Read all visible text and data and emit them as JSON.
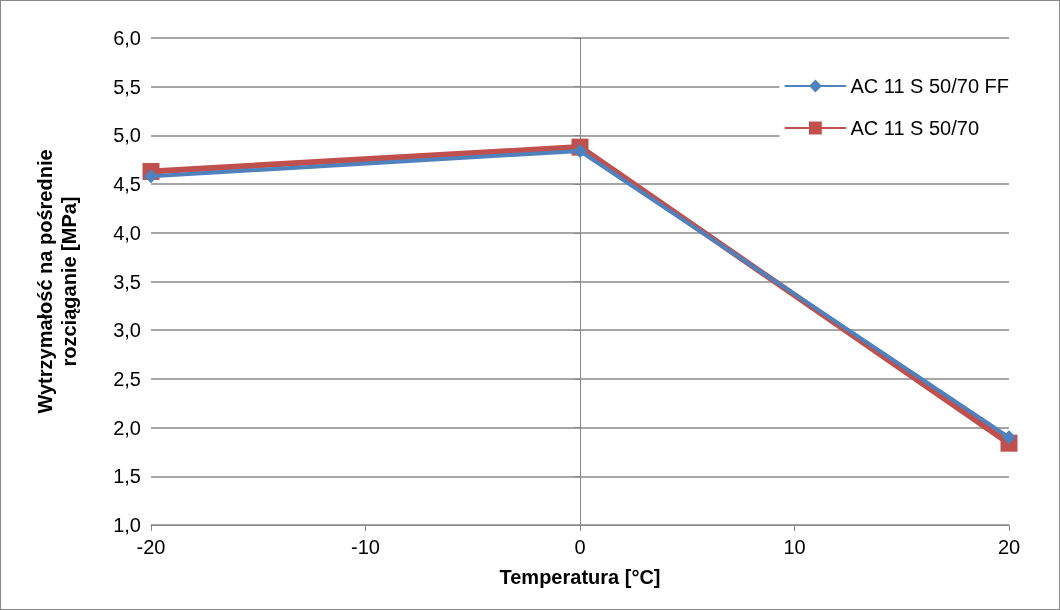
{
  "chart_data": {
    "type": "line",
    "xlabel": "Temperatura [°C]",
    "ylabel": "Wytrzymałość na pośrednie\nrozciąganie [MPa]",
    "x": [
      -20,
      0,
      20
    ],
    "series": [
      {
        "name": "AC 11 S 50/70 FF",
        "color": "#4f81bd",
        "marker": "diamond",
        "values": [
          4.58,
          4.84,
          1.9
        ]
      },
      {
        "name": "AC 11 S 50/70",
        "color": "#c0504d",
        "marker": "square",
        "values": [
          4.63,
          4.88,
          1.84
        ]
      }
    ],
    "xlim": [
      -20,
      20
    ],
    "xticks": [
      -20,
      -10,
      0,
      10,
      20
    ],
    "ylim": [
      1,
      6
    ],
    "yticks": [
      {
        "value": 1,
        "label": "1,0"
      },
      {
        "value": 1.5,
        "label": "1,5"
      },
      {
        "value": 2,
        "label": "2,0"
      },
      {
        "value": 2.5,
        "label": "2,5"
      },
      {
        "value": 3,
        "label": "3,0"
      },
      {
        "value": 3.5,
        "label": "3,5"
      },
      {
        "value": 4,
        "label": "4,0"
      },
      {
        "value": 4.5,
        "label": "4,5"
      },
      {
        "value": 5,
        "label": "5,0"
      },
      {
        "value": 5.5,
        "label": "5,5"
      },
      {
        "value": 6,
        "label": "6,0"
      }
    ],
    "grid": "y",
    "legend": "top right",
    "line_style": "solid"
  }
}
